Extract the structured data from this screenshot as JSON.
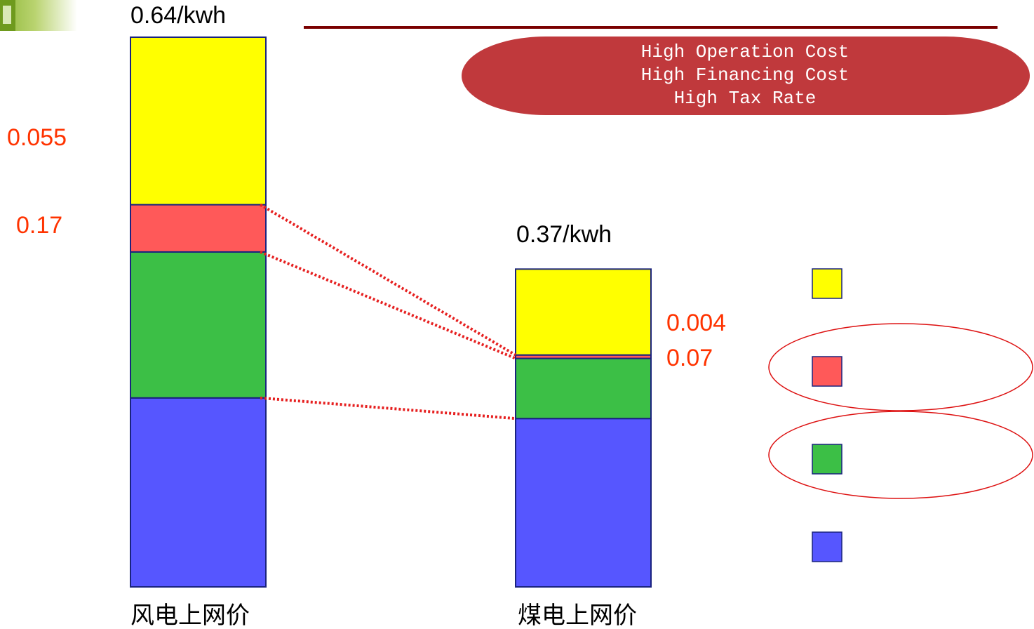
{
  "title_line_color": "#7a0000",
  "callout": {
    "lines": [
      "High Operation Cost",
      "High Financing Cost",
      "High Tax Rate"
    ],
    "fill": "#c0393c"
  },
  "left_side_labels": [
    "0.055",
    "0.17"
  ],
  "colors": {
    "yellow": "#ffff00",
    "red": "#ff5959",
    "green": "#3cbf46",
    "blue": "#5656ff",
    "outline": "#1a237e",
    "connector": "#e62020",
    "highlight_ellipse": "#dd1111",
    "annotation_text": "#ff3300"
  },
  "chart_data": {
    "type": "bar",
    "stacked": true,
    "categories": [
      "风电上网价",
      "煤电上网价"
    ],
    "totals": [
      "0.64/kwh",
      "0.37/kwh"
    ],
    "total_values": [
      0.64,
      0.37
    ],
    "ylim": [
      0,
      0.64
    ],
    "series": [
      {
        "color": "yellow",
        "values": [
          0.195,
          0.1
        ]
      },
      {
        "color": "red",
        "values": [
          0.055,
          0.004
        ]
      },
      {
        "color": "green",
        "values": [
          0.17,
          0.07
        ]
      },
      {
        "color": "blue",
        "values": [
          0.22,
          0.196
        ]
      }
    ],
    "right_bar_labels": [
      "0.004",
      "0.07"
    ],
    "legend": [
      {
        "color": "yellow",
        "label": "",
        "highlighted": false
      },
      {
        "color": "red",
        "label": "",
        "highlighted": true
      },
      {
        "color": "green",
        "label": "",
        "highlighted": true
      },
      {
        "color": "blue",
        "label": "",
        "highlighted": false
      }
    ],
    "grid": false
  }
}
